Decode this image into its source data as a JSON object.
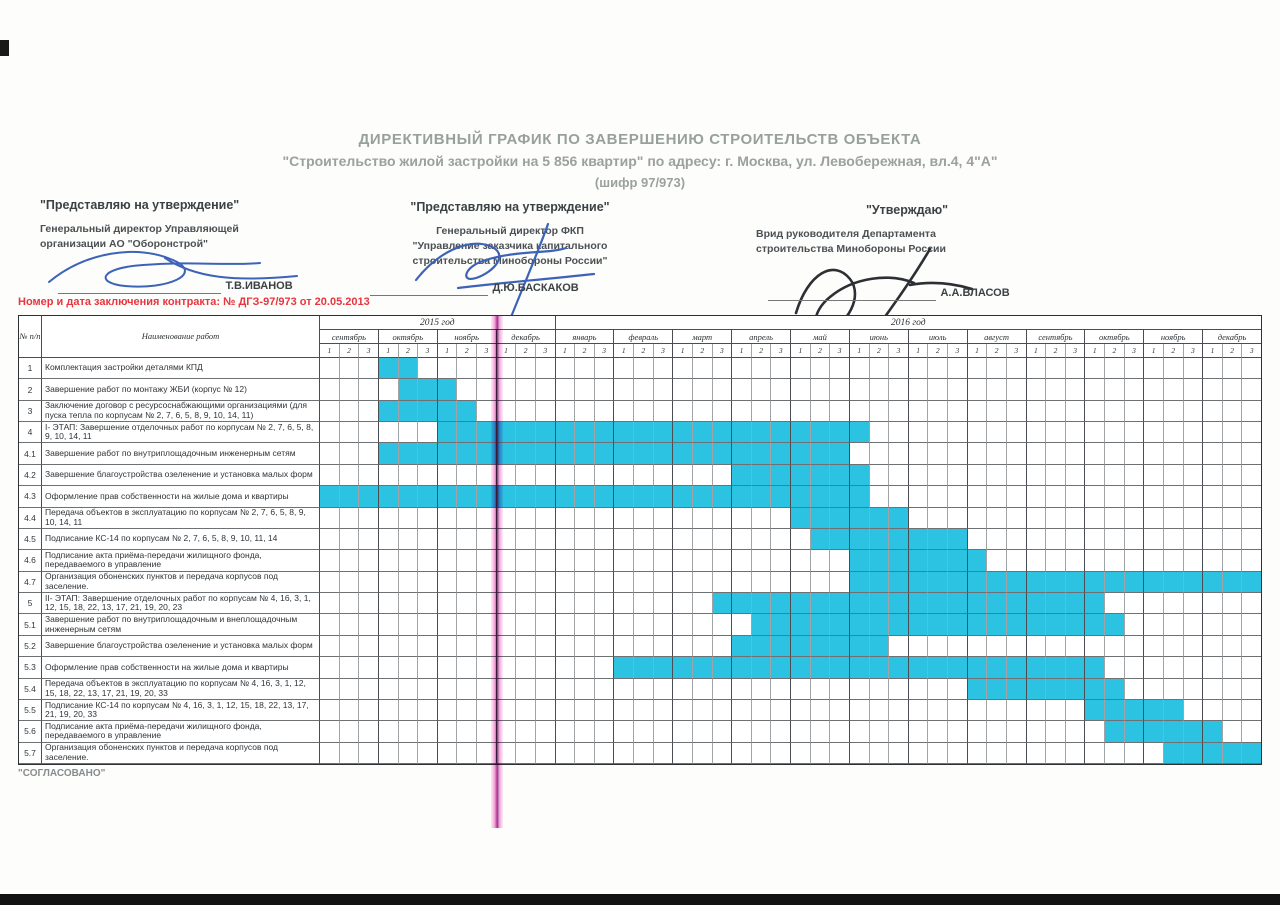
{
  "title": {
    "line1": "ДИРЕКТИВНЫЙ ГРАФИК ПО ЗАВЕРШЕНИЮ СТРОИТЕЛЬСТВ ОБЪЕКТА",
    "line2": "\"Строительство жилой застройки на 5 856 квартир\" по адресу: г. Москва, ул. Левобережная, вл.4, 4\"А\"",
    "line3": "(шифр 97/973)"
  },
  "approvals": {
    "left": {
      "head": "\"Представляю на утверждение\"",
      "body1": "Генеральный директор Управляющей",
      "body2": "организации  АО \"Оборонстрой\"",
      "name": "Т.В.ИВАНОВ"
    },
    "middle": {
      "head": "\"Представляю на утверждение\"",
      "body1": "Генеральный директор ФКП",
      "body2": "\"Управление заказчика капитального",
      "body3": "строительства Минобороны России\"",
      "name": "Д.Ю.БАСКАКОВ"
    },
    "right": {
      "head": "\"Утверждаю\"",
      "body1": "Врид руководителя Департамента",
      "body2": "строительства Минобороны России",
      "name": "А.А.ВЛАСОВ"
    }
  },
  "contract_note": "Номер и дата заключения контракта: № ДГЗ-97/973 от 20.05.2013",
  "agreed_note": "\"СОГЛАСОВАНО\"",
  "chart_data": {
    "type": "gantt",
    "col_header_no": "№ п/п",
    "col_header_name": "Наименование работ",
    "years": [
      {
        "label": "2015 год",
        "decades": 12
      },
      {
        "label": "2016 год",
        "decades": 36
      }
    ],
    "months": [
      "сентябрь",
      "октябрь",
      "ноябрь",
      "декабрь",
      "январь",
      "февраль",
      "март",
      "апрель",
      "май",
      "июнь",
      "июль",
      "август",
      "сентябрь",
      "октябрь",
      "ноябрь",
      "декабрь"
    ],
    "decade_labels": [
      "1",
      "2",
      "3"
    ],
    "bar_color": "#2cc2e2",
    "note": "start/end are inclusive decade indices, 0 = сентябрь 2015 декада 1, 47 = декабрь 2016 декада 3",
    "rows": [
      {
        "num": "1",
        "label": "Комплектация застройки деталями КПД",
        "start": 3,
        "end": 4
      },
      {
        "num": "2",
        "label": "Завершение работ по монтажу ЖБИ (корпус № 12)",
        "start": 4,
        "end": 6
      },
      {
        "num": "3",
        "label": "Заключение договор с ресурсоснабжающими организациями (для пуска тепла по корпусам №  2, 7, 6, 5, 8, 9, 10, 14, 11)",
        "start": 3,
        "end": 7
      },
      {
        "num": "4",
        "label": "I- ЭТАП: Завершение отделочных работ по  корпусам № 2, 7, 6, 5, 8, 9, 10, 14, 11",
        "start": 6,
        "end": 27
      },
      {
        "num": "4.1",
        "label": "Завершение работ по внутриплощадочным инженерным сетям",
        "start": 3,
        "end": 26
      },
      {
        "num": "4.2",
        "label": "Завершение благоустройства озеленение и установка малых форм",
        "start": 21,
        "end": 27
      },
      {
        "num": "4.3",
        "label": "Оформление прав собственности на жилые дома и квартиры",
        "start": 0,
        "end": 27
      },
      {
        "num": "4.4",
        "label": "Передача объектов в эксплуатацию по корпусам № 2, 7, 6, 5, 8, 9, 10, 14, 11",
        "start": 24,
        "end": 29
      },
      {
        "num": "4.5",
        "label": "Подписание КС-14 по корпусам № 2,  7, 6, 5, 8, 9, 10, 11, 14",
        "start": 25,
        "end": 32
      },
      {
        "num": "4.6",
        "label": "Подписание акта приёма-передачи жилищного фонда, передаваемого в управление",
        "start": 27,
        "end": 33
      },
      {
        "num": "4.7",
        "label": "Организация обоненских пунктов и передача корпусов под заселение.",
        "start": 27,
        "end": 47
      },
      {
        "num": "5",
        "label": "II- ЭТАП: Завершение отделочных работ по корпусам № 4, 16, 3, 1, 12, 15, 18, 22, 13, 17, 21, 19, 20, 23",
        "start": 20,
        "end": 39
      },
      {
        "num": "5.1",
        "label": "Завершение работ по внутриплощадочным и внеплощадочным инженерным сетям",
        "start": 22,
        "end": 40
      },
      {
        "num": "5.2",
        "label": "Завершение благоустройства озеленение и установка малых форм",
        "start": 21,
        "end": 28
      },
      {
        "num": "5.3",
        "label": "Оформление прав собственности на жилые дома и квартиры",
        "start": 15,
        "end": 39
      },
      {
        "num": "5.4",
        "label": "Передача объектов в эксплуатацию по корпусам                № 4, 16, 3, 1, 12, 15, 18, 22, 13, 17, 21, 19, 20, 33",
        "start": 33,
        "end": 40
      },
      {
        "num": "5.5",
        "label": "Подписание КС-14 по корпусам                № 4, 16, 3, 1, 12, 15, 18, 22, 13, 17, 21, 19, 20, 33",
        "start": 39,
        "end": 43
      },
      {
        "num": "5.6",
        "label": "Подписание акта приёма-передачи жилищного фонда, передаваемого в управление",
        "start": 40,
        "end": 45
      },
      {
        "num": "5.7",
        "label": "Организация обоненских пунктов и передача корпусов под заселение.",
        "start": 43,
        "end": 47
      }
    ]
  }
}
